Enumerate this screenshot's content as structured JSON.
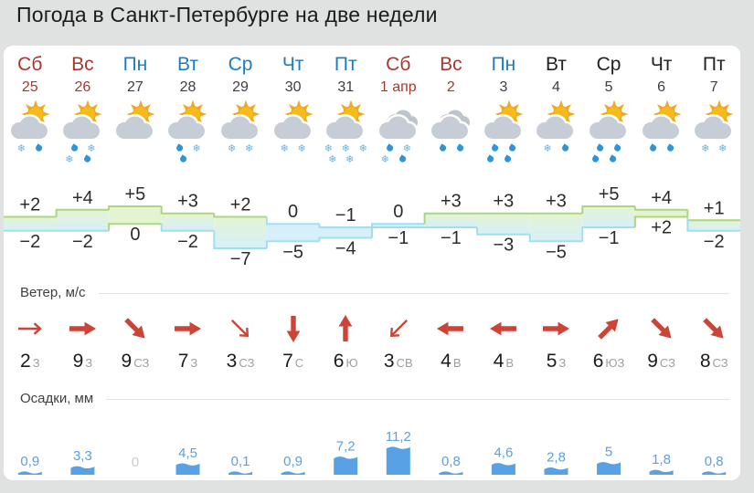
{
  "title": "Погода в Санкт-Петербурге на две недели",
  "sections": {
    "wind_label": "Ветер, м/с",
    "precip_label": "Осадки, мм"
  },
  "colors": {
    "page_bg": "#e0e2e1",
    "card_bg": "#ffffff",
    "weekend_red": "#a8372e",
    "link_blue": "#1e7cc2",
    "plain_text": "#222222",
    "arrow_red": "#cb4437",
    "bar_blue": "#57a1e4",
    "bar_label_blue": "#5d9fe0",
    "zero_gray": "#c9ced3",
    "divider": "#e4e4e4",
    "band_green_fill": "#e4f4d3",
    "band_green_stroke": "#abd77d",
    "band_blue_fill": "#d7eff9",
    "band_blue_stroke": "#9fdff2",
    "sun_yellow": "#f6ba1d",
    "ray_orange": "#f2a91a",
    "cloud_gray": "#c7cdd6",
    "back_cloud_gray": "#bcc4ce",
    "snow_blue": "#66b4e4",
    "drop_blue": "#2d95da"
  },
  "days": [
    {
      "day": "Сб",
      "date": "25",
      "day_style": "weekend",
      "date_style": "weekend",
      "icon": {
        "sun": true,
        "double_cloud": false,
        "precip": [
          [
            "snow",
            "drop"
          ]
        ]
      },
      "temp_max_label": "+2",
      "temp_min_label": "−2",
      "temp_max": 2,
      "temp_min": -2,
      "wind": {
        "speed": "2",
        "dir": "З",
        "angle": 0,
        "strong": false
      },
      "precip_label": "0,9",
      "precip_mm": 0.9
    },
    {
      "day": "Вс",
      "date": "26",
      "day_style": "weekend",
      "date_style": "weekend",
      "icon": {
        "sun": true,
        "double_cloud": false,
        "precip": [
          [
            "drop",
            "snow"
          ],
          [
            "snow",
            "drop"
          ]
        ]
      },
      "temp_max_label": "+4",
      "temp_min_label": "−2",
      "temp_max": 4,
      "temp_min": -2,
      "wind": {
        "speed": "9",
        "dir": "З",
        "angle": 0,
        "strong": true
      },
      "precip_label": "3,3",
      "precip_mm": 3.3
    },
    {
      "day": "Пн",
      "date": "27",
      "day_style": "link",
      "date_style": "plain",
      "icon": {
        "sun": true,
        "double_cloud": false,
        "precip": []
      },
      "temp_max_label": "+5",
      "temp_min_label": "0",
      "temp_max": 5,
      "temp_min": 0,
      "wind": {
        "speed": "9",
        "dir": "СЗ",
        "angle": 45,
        "strong": true
      },
      "precip_label": "0",
      "precip_mm": 0
    },
    {
      "day": "Вт",
      "date": "28",
      "day_style": "link",
      "date_style": "plain",
      "icon": {
        "sun": true,
        "double_cloud": false,
        "precip": [
          [
            "drop",
            "snow"
          ],
          [
            "drop"
          ]
        ]
      },
      "temp_max_label": "+3",
      "temp_min_label": "−2",
      "temp_max": 3,
      "temp_min": -2,
      "wind": {
        "speed": "7",
        "dir": "З",
        "angle": 0,
        "strong": true
      },
      "precip_label": "4,5",
      "precip_mm": 4.5
    },
    {
      "day": "Ср",
      "date": "29",
      "day_style": "link",
      "date_style": "plain",
      "icon": {
        "sun": true,
        "double_cloud": false,
        "precip": [
          [
            "snow",
            "snow"
          ]
        ]
      },
      "temp_max_label": "+2",
      "temp_min_label": "−7",
      "temp_max": 2,
      "temp_min": -7,
      "wind": {
        "speed": "3",
        "dir": "СЗ",
        "angle": 45,
        "strong": false
      },
      "precip_label": "0,1",
      "precip_mm": 0.1
    },
    {
      "day": "Чт",
      "date": "30",
      "day_style": "link",
      "date_style": "plain",
      "icon": {
        "sun": true,
        "double_cloud": false,
        "precip": [
          [
            "snow",
            "snow"
          ]
        ]
      },
      "temp_max_label": "0",
      "temp_min_label": "−5",
      "temp_max": 0,
      "temp_min": -5,
      "wind": {
        "speed": "7",
        "dir": "С",
        "angle": 90,
        "strong": true
      },
      "precip_label": "0,9",
      "precip_mm": 0.9
    },
    {
      "day": "Пт",
      "date": "31",
      "day_style": "link",
      "date_style": "plain",
      "icon": {
        "sun": true,
        "double_cloud": false,
        "precip": [
          [
            "snow",
            "snow",
            "snow"
          ],
          [
            "snow",
            "snow"
          ]
        ]
      },
      "temp_max_label": "−1",
      "temp_min_label": "−4",
      "temp_max": -1,
      "temp_min": -4,
      "wind": {
        "speed": "6",
        "dir": "Ю",
        "angle": -90,
        "strong": true
      },
      "precip_label": "7,2",
      "precip_mm": 7.2
    },
    {
      "day": "Сб",
      "date": "1 апр",
      "day_style": "weekend",
      "date_style": "weekend",
      "icon": {
        "sun": false,
        "double_cloud": true,
        "precip": [
          [
            "drop",
            "snow"
          ],
          [
            "snow",
            "drop"
          ]
        ]
      },
      "temp_max_label": "0",
      "temp_min_label": "−1",
      "temp_max": 0,
      "temp_min": -1,
      "wind": {
        "speed": "3",
        "dir": "СВ",
        "angle": 135,
        "strong": false
      },
      "precip_label": "11,2",
      "precip_mm": 11.2
    },
    {
      "day": "Вс",
      "date": "2",
      "day_style": "weekend",
      "date_style": "weekend",
      "icon": {
        "sun": false,
        "double_cloud": true,
        "precip": [
          [
            "drop",
            "drop"
          ]
        ]
      },
      "temp_max_label": "+3",
      "temp_min_label": "−1",
      "temp_max": 3,
      "temp_min": -1,
      "wind": {
        "speed": "4",
        "dir": "В",
        "angle": 180,
        "strong": true
      },
      "precip_label": "0,8",
      "precip_mm": 0.8
    },
    {
      "day": "Пн",
      "date": "3",
      "day_style": "link",
      "date_style": "plain",
      "icon": {
        "sun": true,
        "double_cloud": false,
        "precip": [
          [
            "drop",
            "drop"
          ],
          [
            "drop",
            "drop"
          ]
        ]
      },
      "temp_max_label": "+3",
      "temp_min_label": "−3",
      "temp_max": 3,
      "temp_min": -3,
      "wind": {
        "speed": "4",
        "dir": "В",
        "angle": 180,
        "strong": true
      },
      "precip_label": "4,6",
      "precip_mm": 4.6
    },
    {
      "day": "Вт",
      "date": "4",
      "day_style": "plain",
      "date_style": "plain",
      "icon": {
        "sun": true,
        "double_cloud": false,
        "precip": [
          [
            "snow",
            "drop"
          ]
        ]
      },
      "temp_max_label": "+3",
      "temp_min_label": "−5",
      "temp_max": 3,
      "temp_min": -5,
      "wind": {
        "speed": "5",
        "dir": "З",
        "angle": 0,
        "strong": true
      },
      "precip_label": "2,8",
      "precip_mm": 2.8
    },
    {
      "day": "Ср",
      "date": "5",
      "day_style": "plain",
      "date_style": "plain",
      "icon": {
        "sun": true,
        "double_cloud": false,
        "precip": [
          [
            "drop",
            "drop"
          ],
          [
            "drop",
            "drop"
          ]
        ]
      },
      "temp_max_label": "+5",
      "temp_min_label": "−1",
      "temp_max": 5,
      "temp_min": -1,
      "wind": {
        "speed": "6",
        "dir": "ЮЗ",
        "angle": -45,
        "strong": true
      },
      "precip_label": "5",
      "precip_mm": 5
    },
    {
      "day": "Чт",
      "date": "6",
      "day_style": "plain",
      "date_style": "plain",
      "icon": {
        "sun": true,
        "double_cloud": false,
        "precip": [
          [
            "drop",
            "drop"
          ]
        ]
      },
      "temp_max_label": "+4",
      "temp_min_label": "+2",
      "temp_max": 4,
      "temp_min": 2,
      "wind": {
        "speed": "9",
        "dir": "СЗ",
        "angle": 45,
        "strong": true
      },
      "precip_label": "1,8",
      "precip_mm": 1.8
    },
    {
      "day": "Пт",
      "date": "7",
      "day_style": "plain",
      "date_style": "plain",
      "icon": {
        "sun": true,
        "double_cloud": false,
        "precip": [
          [
            "snow",
            "snow"
          ]
        ]
      },
      "temp_max_label": "+1",
      "temp_min_label": "−2",
      "temp_max": 1,
      "temp_min": -2,
      "wind": {
        "speed": "8",
        "dir": "СЗ",
        "angle": 45,
        "strong": true
      },
      "precip_label": "0,8",
      "precip_mm": 0.8
    }
  ],
  "chart_data": [
    {
      "type": "area",
      "name": "temperature-band",
      "title": "Температура, °C (макс/мин, ступенчатая полоса)",
      "categories": [
        "25",
        "26",
        "27",
        "28",
        "29",
        "30",
        "31",
        "1 апр",
        "2",
        "3",
        "4",
        "5",
        "6",
        "7"
      ],
      "series": [
        {
          "name": "max",
          "values": [
            2,
            4,
            5,
            3,
            2,
            0,
            -1,
            0,
            3,
            3,
            3,
            5,
            4,
            1
          ]
        },
        {
          "name": "min",
          "values": [
            -2,
            -2,
            0,
            -2,
            -7,
            -5,
            -4,
            -1,
            -1,
            -3,
            -5,
            -1,
            2,
            -2
          ]
        }
      ],
      "ylim": [
        -7,
        5
      ],
      "grid": false,
      "legend": "none"
    },
    {
      "type": "bar",
      "name": "precipitation",
      "title": "Осадки, мм",
      "categories": [
        "25",
        "26",
        "27",
        "28",
        "29",
        "30",
        "31",
        "1 апр",
        "2",
        "3",
        "4",
        "5",
        "6",
        "7"
      ],
      "values": [
        0.9,
        3.3,
        0,
        4.5,
        0.1,
        0.9,
        7.2,
        11.2,
        0.8,
        4.6,
        2.8,
        5,
        1.8,
        0.8
      ],
      "ylim": [
        0,
        11.2
      ],
      "grid": false
    },
    {
      "type": "table",
      "name": "wind",
      "title": "Ветер, м/с",
      "categories": [
        "25",
        "26",
        "27",
        "28",
        "29",
        "30",
        "31",
        "1 апр",
        "2",
        "3",
        "4",
        "5",
        "6",
        "7"
      ],
      "speeds": [
        2,
        9,
        9,
        7,
        3,
        7,
        6,
        3,
        4,
        4,
        5,
        6,
        9,
        8
      ],
      "directions": [
        "З",
        "З",
        "СЗ",
        "З",
        "СЗ",
        "С",
        "Ю",
        "СВ",
        "В",
        "В",
        "З",
        "ЮЗ",
        "СЗ",
        "СЗ"
      ]
    }
  ]
}
